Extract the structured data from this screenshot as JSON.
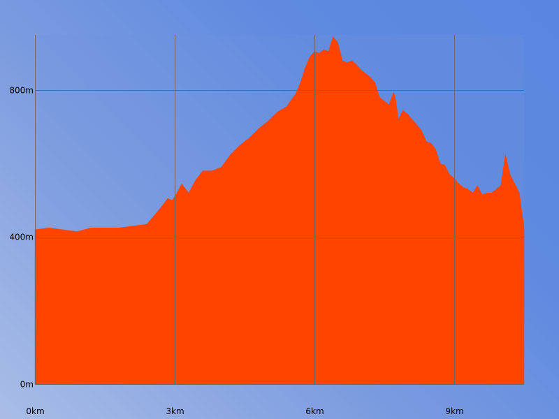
{
  "chart_data": {
    "type": "area",
    "title": "",
    "xlabel": "",
    "ylabel": "",
    "x_unit": "km",
    "y_unit": "m",
    "xlim": [
      0,
      10.5
    ],
    "ylim": [
      0,
      950
    ],
    "grid": true,
    "x_ticks": [
      {
        "value": 0,
        "label": "0km"
      },
      {
        "value": 3,
        "label": "3km"
      },
      {
        "value": 6,
        "label": "6km"
      },
      {
        "value": 9,
        "label": "9km"
      }
    ],
    "y_ticks": [
      {
        "value": 0,
        "label": "0m"
      },
      {
        "value": 400,
        "label": "400m"
      },
      {
        "value": 800,
        "label": "800m"
      }
    ],
    "colors": {
      "area": "#ff4400",
      "grid": "#6b6b6b",
      "plot_background": "#6f94dc"
    },
    "series": [
      {
        "x": [
          0,
          0.3,
          0.6,
          0.9,
          1.2,
          1.5,
          1.8,
          2.1,
          2.4,
          2.5,
          2.7,
          2.85,
          2.95,
          3.05,
          3.15,
          3.3,
          3.45,
          3.6,
          3.8,
          4.0,
          4.2,
          4.4,
          4.6,
          4.8,
          5.0,
          5.2,
          5.4,
          5.6,
          5.7,
          5.8,
          5.9,
          6.0,
          6.1,
          6.2,
          6.3,
          6.4,
          6.5,
          6.6,
          6.7,
          6.8,
          6.9,
          7.0,
          7.1,
          7.2,
          7.3,
          7.4,
          7.5,
          7.6,
          7.7,
          7.75,
          7.8,
          7.9,
          8.0,
          8.1,
          8.2,
          8.3,
          8.4,
          8.5,
          8.6,
          8.7,
          8.8,
          8.9,
          9.0,
          9.1,
          9.2,
          9.3,
          9.4,
          9.5,
          9.6,
          9.7,
          9.8,
          9.9,
          10.0,
          10.1,
          10.2,
          10.3,
          10.4,
          10.45,
          10.5
        ],
        "y": [
          420,
          425,
          420,
          415,
          425,
          425,
          425,
          430,
          435,
          450,
          480,
          505,
          500,
          520,
          545,
          520,
          555,
          580,
          580,
          590,
          625,
          650,
          670,
          695,
          715,
          740,
          755,
          790,
          820,
          860,
          890,
          905,
          900,
          910,
          905,
          945,
          930,
          880,
          875,
          880,
          870,
          855,
          845,
          835,
          820,
          780,
          770,
          760,
          795,
          770,
          720,
          745,
          735,
          720,
          705,
          690,
          660,
          655,
          640,
          600,
          595,
          570,
          560,
          545,
          535,
          530,
          520,
          540,
          515,
          520,
          520,
          530,
          540,
          625,
          570,
          545,
          520,
          470,
          430
        ]
      }
    ]
  }
}
